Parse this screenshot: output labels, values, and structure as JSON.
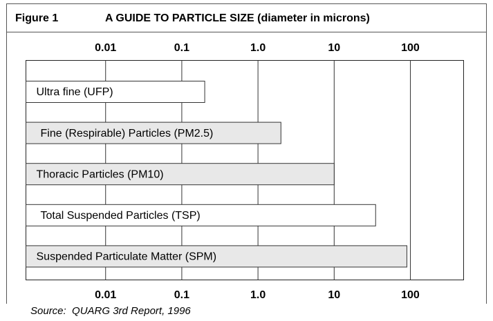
{
  "chart_data": {
    "type": "bar",
    "orientation": "horizontal",
    "figure_label": "Figure 1",
    "title": "A GUIDE TO PARTICLE SIZE (diameter in microns)",
    "source": "Source:  QUARG 3rd Report, 1996",
    "categories": [
      "Ultra fine (UFP)",
      "Fine (Respirable) Particles (PM2.5)",
      "Thoracic Particles (PM10)",
      "Total Suspended Particles (TSP)",
      "Suspended Particulate Matter (SPM)"
    ],
    "values": [
      0.2,
      2,
      10,
      35,
      90
    ],
    "colors": [
      "#ffffff",
      "#e8e8e8",
      "#e8e8e8",
      "#ffffff",
      "#e8e8e8"
    ],
    "log_x": true,
    "xlim": [
      0.0009,
      500
    ],
    "xticks": [
      0.01,
      0.1,
      {
        "value": 1,
        "label": "1.0"
      },
      10,
      100
    ],
    "grid": true
  }
}
